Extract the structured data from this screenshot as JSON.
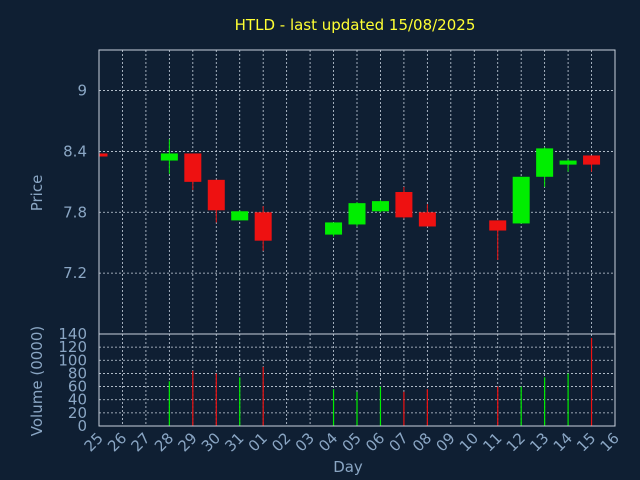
{
  "chart_data": {
    "type": "candlestick",
    "title": "HTLD - last updated 15/08/2025",
    "xlabel": "Day",
    "ylabel_price": "Price",
    "ylabel_volume": "Volume (0000)",
    "x_ticks": [
      "25",
      "26",
      "27",
      "28",
      "29",
      "30",
      "31",
      "01",
      "02",
      "03",
      "04",
      "05",
      "06",
      "07",
      "08",
      "09",
      "10",
      "11",
      "12",
      "13",
      "14",
      "15",
      "16"
    ],
    "price_ylim": [
      6.6,
      9.4
    ],
    "price_ticks": [
      7.2,
      7.8,
      8.4,
      9
    ],
    "volume_ylim": [
      0,
      140
    ],
    "volume_ticks": [
      0,
      20,
      40,
      60,
      80,
      100,
      120,
      140
    ],
    "grid": true,
    "up_color": "#00ee00",
    "down_color": "#ee1111",
    "candles": [
      {
        "x": "25",
        "open": 8.38,
        "high": 8.38,
        "low": 8.35,
        "close": 8.35,
        "volume": 0
      },
      {
        "x": "28",
        "open": 8.31,
        "high": 8.52,
        "low": 8.18,
        "close": 8.38,
        "volume": 68
      },
      {
        "x": "29",
        "open": 8.38,
        "high": 8.38,
        "low": 8.02,
        "close": 8.1,
        "volume": 84
      },
      {
        "x": "30",
        "open": 8.12,
        "high": 8.12,
        "low": 7.7,
        "close": 7.82,
        "volume": 80
      },
      {
        "x": "31",
        "open": 7.72,
        "high": 7.82,
        "low": 7.72,
        "close": 7.81,
        "volume": 74
      },
      {
        "x": "01",
        "open": 7.8,
        "high": 7.86,
        "low": 7.42,
        "close": 7.52,
        "volume": 90
      },
      {
        "x": "04",
        "open": 7.58,
        "high": 7.7,
        "low": 7.56,
        "close": 7.7,
        "volume": 56
      },
      {
        "x": "05",
        "open": 7.68,
        "high": 7.9,
        "low": 7.66,
        "close": 7.89,
        "volume": 52
      },
      {
        "x": "06",
        "open": 7.81,
        "high": 7.92,
        "low": 7.8,
        "close": 7.91,
        "volume": 60
      },
      {
        "x": "07",
        "open": 8.0,
        "high": 8.05,
        "low": 7.74,
        "close": 7.75,
        "volume": 52
      },
      {
        "x": "08",
        "open": 7.8,
        "high": 7.88,
        "low": 7.66,
        "close": 7.66,
        "volume": 56
      },
      {
        "x": "11",
        "open": 7.72,
        "high": 7.72,
        "low": 7.33,
        "close": 7.62,
        "volume": 60
      },
      {
        "x": "12",
        "open": 7.69,
        "high": 8.15,
        "low": 7.69,
        "close": 8.15,
        "volume": 60
      },
      {
        "x": "13",
        "open": 8.15,
        "high": 8.44,
        "low": 8.05,
        "close": 8.43,
        "volume": 74
      },
      {
        "x": "14",
        "open": 8.27,
        "high": 8.32,
        "low": 8.2,
        "close": 8.31,
        "volume": 80
      },
      {
        "x": "15",
        "open": 8.36,
        "high": 8.36,
        "low": 8.2,
        "close": 8.27,
        "volume": 134
      }
    ]
  }
}
